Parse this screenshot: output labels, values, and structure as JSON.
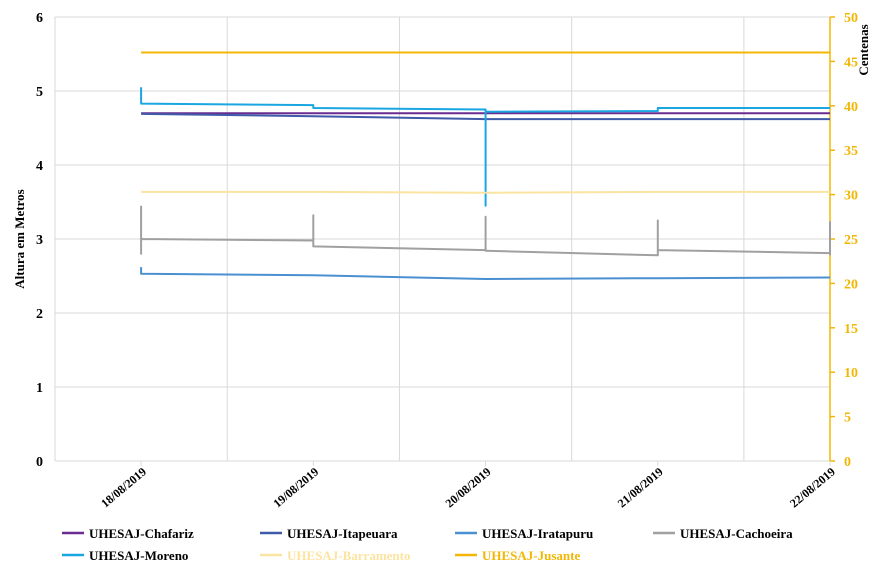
{
  "chart_data": {
    "type": "line",
    "title": "",
    "ylabel": "Altura  em Metros",
    "y2label": "Centenas",
    "ylim": [
      0,
      6
    ],
    "y2lim": [
      0,
      50
    ],
    "yticks": [
      "0",
      "1",
      "2",
      "3",
      "4",
      "5",
      "6"
    ],
    "y2ticks": [
      "0",
      "5",
      "10",
      "15",
      "20",
      "25",
      "30",
      "35",
      "40",
      "45",
      "50"
    ],
    "xticks": [
      "18/08/2019",
      "19/08/2019",
      "20/08/2019",
      "21/08/2019",
      "22/08/2019"
    ],
    "x_range": [
      -0.5,
      4.0
    ],
    "grid": true,
    "legend_position": "bottom",
    "colors": {
      "left_axis_text": "#000000",
      "right_axis": "#f2b705",
      "gridline": "#d9d9d9"
    },
    "series": [
      {
        "name": "UHESAJ-Chafariz",
        "color": "#6a2c91",
        "axis": "left",
        "points": [
          [
            0,
            4.7
          ],
          [
            1,
            4.7
          ],
          [
            2,
            4.7
          ],
          [
            3,
            4.7
          ],
          [
            4,
            4.7
          ]
        ]
      },
      {
        "name": "UHESAJ-Itapeuara",
        "color": "#3f5aa8",
        "axis": "left",
        "points": [
          [
            0,
            4.69
          ],
          [
            1,
            4.66
          ],
          [
            2,
            4.62
          ],
          [
            3,
            4.62
          ],
          [
            4,
            4.62
          ]
        ]
      },
      {
        "name": "UHESAJ-Iratapuru",
        "color": "#4a90d0",
        "axis": "left",
        "points": [
          [
            0,
            2.62
          ],
          [
            0,
            2.53
          ],
          [
            1,
            2.51
          ],
          [
            2,
            2.46
          ],
          [
            3,
            2.47
          ],
          [
            4,
            2.48
          ]
        ]
      },
      {
        "name": "UHESAJ-Cachoeira",
        "color": "#a0a0a0",
        "axis": "left",
        "points": [
          [
            0,
            3.45
          ],
          [
            0,
            2.8
          ],
          [
            0,
            3.0
          ],
          [
            1,
            2.98
          ],
          [
            1,
            3.32
          ],
          [
            1,
            2.9
          ],
          [
            2,
            2.85
          ],
          [
            2,
            3.3
          ],
          [
            2,
            2.84
          ],
          [
            3,
            2.78
          ],
          [
            3,
            3.25
          ],
          [
            3,
            2.85
          ],
          [
            4,
            2.81
          ],
          [
            4,
            3.23
          ],
          [
            4,
            2.78
          ]
        ]
      },
      {
        "name": "UHESAJ-Moreno",
        "color": "#1aa6e0",
        "axis": "left",
        "points": [
          [
            0,
            5.05
          ],
          [
            0,
            4.83
          ],
          [
            1,
            4.81
          ],
          [
            1,
            4.77
          ],
          [
            2,
            4.75
          ],
          [
            2,
            3.45
          ],
          [
            2,
            4.72
          ],
          [
            3,
            4.73
          ],
          [
            3,
            4.77
          ],
          [
            4,
            4.77
          ]
        ]
      },
      {
        "name": "UHESAJ-Barramento",
        "color": "#fbe3a0",
        "axis": "right",
        "points": [
          [
            0,
            30.3
          ],
          [
            1,
            30.3
          ],
          [
            2,
            30.2
          ],
          [
            3,
            30.3
          ],
          [
            4,
            30.3
          ]
        ]
      },
      {
        "name": "UHESAJ-Jusante",
        "color": "#f2b705",
        "axis": "right",
        "points": [
          [
            0,
            46.0
          ],
          [
            1,
            46.0
          ],
          [
            2,
            46.0
          ],
          [
            3,
            46.0
          ],
          [
            4,
            46.0
          ]
        ]
      }
    ]
  }
}
